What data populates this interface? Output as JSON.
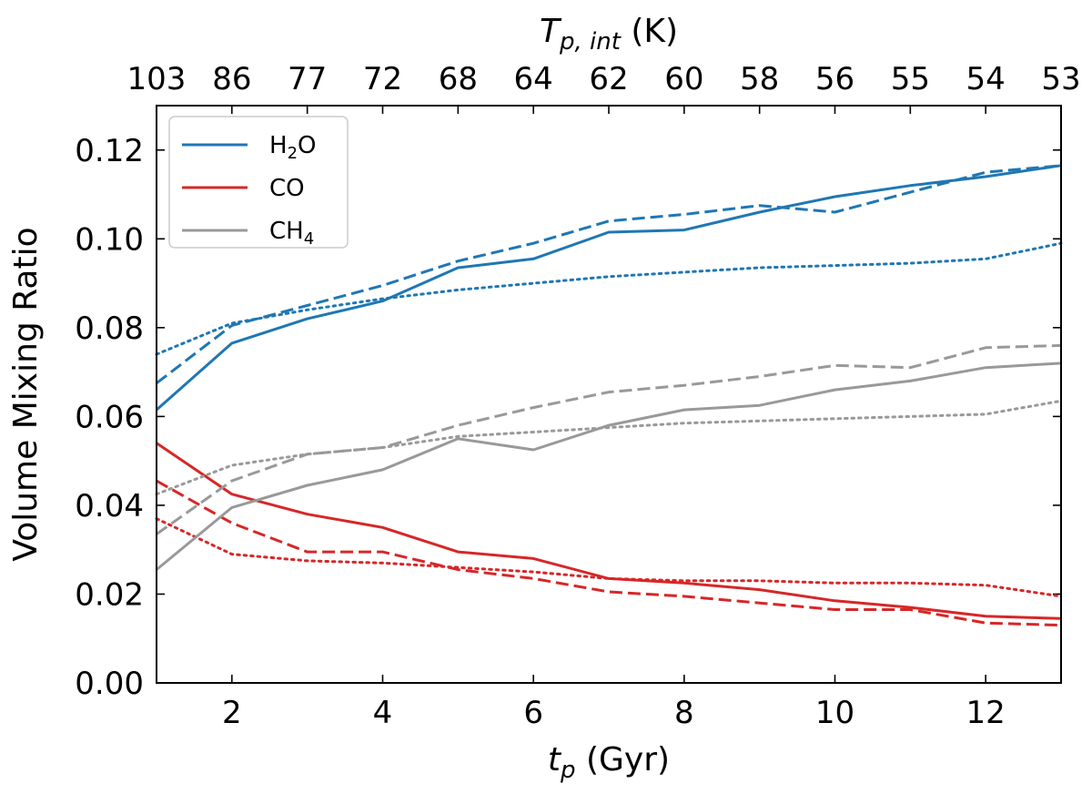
{
  "chart_data": {
    "type": "line",
    "title": "",
    "xlabel_base": "t",
    "xlabel_sub": "p",
    "xlabel_rest": " (Gyr)",
    "ylabel": "Volume Mixing Ratio",
    "top_xlabel_base": "T",
    "top_xlabel_sub": "p, int",
    "top_xlabel_rest": " (K)",
    "xlim": [
      1,
      13
    ],
    "ylim": [
      0,
      0.13
    ],
    "x_ticks": [
      2,
      4,
      6,
      8,
      10,
      12
    ],
    "x_tick_labels": [
      "2",
      "4",
      "6",
      "8",
      "10",
      "12"
    ],
    "y_ticks": [
      0,
      0.02,
      0.04,
      0.06,
      0.08,
      0.1,
      0.12
    ],
    "y_tick_labels": [
      "0.00",
      "0.02",
      "0.04",
      "0.06",
      "0.08",
      "0.10",
      "0.12"
    ],
    "top_ticks": [
      1,
      2,
      3,
      4,
      5,
      6,
      7,
      8,
      9,
      10,
      11,
      12,
      13
    ],
    "top_tick_labels": [
      "103",
      "86",
      "77",
      "72",
      "68",
      "64",
      "62",
      "60",
      "58",
      "56",
      "55",
      "54",
      "53"
    ],
    "x": [
      1,
      2,
      3,
      4,
      5,
      6,
      7,
      8,
      9,
      10,
      11,
      12,
      13
    ],
    "legend": {
      "position": "upper-left",
      "entries": [
        {
          "species": "H2O",
          "base": "H",
          "sub": "2",
          "rest": "O",
          "color": "#1f77b4"
        },
        {
          "species": "CO",
          "base": "CO",
          "sub": "",
          "rest": "",
          "color": "#d62728"
        },
        {
          "species": "CH4",
          "base": "CH",
          "sub": "4",
          "rest": "",
          "color": "#999999"
        }
      ]
    },
    "series": [
      {
        "name": "H2O-solid",
        "species": "H2O",
        "color": "#1f77b4",
        "style": "solid",
        "values": [
          0.0615,
          0.0765,
          0.082,
          0.086,
          0.0935,
          0.0955,
          0.1015,
          0.102,
          0.106,
          0.1095,
          0.112,
          0.114,
          0.1165
        ]
      },
      {
        "name": "H2O-dashed",
        "species": "H2O",
        "color": "#1f77b4",
        "style": "dashed",
        "values": [
          0.0675,
          0.0805,
          0.085,
          0.0895,
          0.095,
          0.099,
          0.104,
          0.1055,
          0.1075,
          0.106,
          0.1105,
          0.115,
          0.1165
        ]
      },
      {
        "name": "H2O-dotted",
        "species": "H2O",
        "color": "#1f77b4",
        "style": "dotted",
        "values": [
          0.074,
          0.081,
          0.084,
          0.0865,
          0.0885,
          0.09,
          0.0915,
          0.0925,
          0.0935,
          0.094,
          0.0945,
          0.0955,
          0.099
        ]
      },
      {
        "name": "CO-solid",
        "species": "CO",
        "color": "#d62728",
        "style": "solid",
        "values": [
          0.054,
          0.0425,
          0.038,
          0.035,
          0.0295,
          0.028,
          0.0235,
          0.0225,
          0.021,
          0.0185,
          0.017,
          0.015,
          0.0145
        ]
      },
      {
        "name": "CO-dashed",
        "species": "CO",
        "color": "#d62728",
        "style": "dashed",
        "values": [
          0.0455,
          0.036,
          0.0295,
          0.0295,
          0.0255,
          0.0235,
          0.0205,
          0.0195,
          0.018,
          0.0165,
          0.0165,
          0.0135,
          0.013
        ]
      },
      {
        "name": "CO-dotted",
        "species": "CO",
        "color": "#d62728",
        "style": "dotted",
        "values": [
          0.037,
          0.029,
          0.0275,
          0.027,
          0.026,
          0.025,
          0.0235,
          0.023,
          0.023,
          0.0225,
          0.0225,
          0.022,
          0.0195
        ]
      },
      {
        "name": "CH4-solid",
        "species": "CH4",
        "color": "#999999",
        "style": "solid",
        "values": [
          0.0255,
          0.0395,
          0.0445,
          0.048,
          0.055,
          0.0525,
          0.058,
          0.0615,
          0.0625,
          0.066,
          0.068,
          0.071,
          0.072
        ]
      },
      {
        "name": "CH4-dashed",
        "species": "CH4",
        "color": "#999999",
        "style": "dashed",
        "values": [
          0.0335,
          0.0455,
          0.0515,
          0.053,
          0.058,
          0.062,
          0.0655,
          0.067,
          0.069,
          0.0715,
          0.071,
          0.0755,
          0.076
        ]
      },
      {
        "name": "CH4-dotted",
        "species": "CH4",
        "color": "#999999",
        "style": "dotted",
        "values": [
          0.0425,
          0.049,
          0.0515,
          0.053,
          0.0555,
          0.0565,
          0.0575,
          0.0585,
          0.059,
          0.0595,
          0.06,
          0.0605,
          0.0635
        ]
      }
    ]
  }
}
